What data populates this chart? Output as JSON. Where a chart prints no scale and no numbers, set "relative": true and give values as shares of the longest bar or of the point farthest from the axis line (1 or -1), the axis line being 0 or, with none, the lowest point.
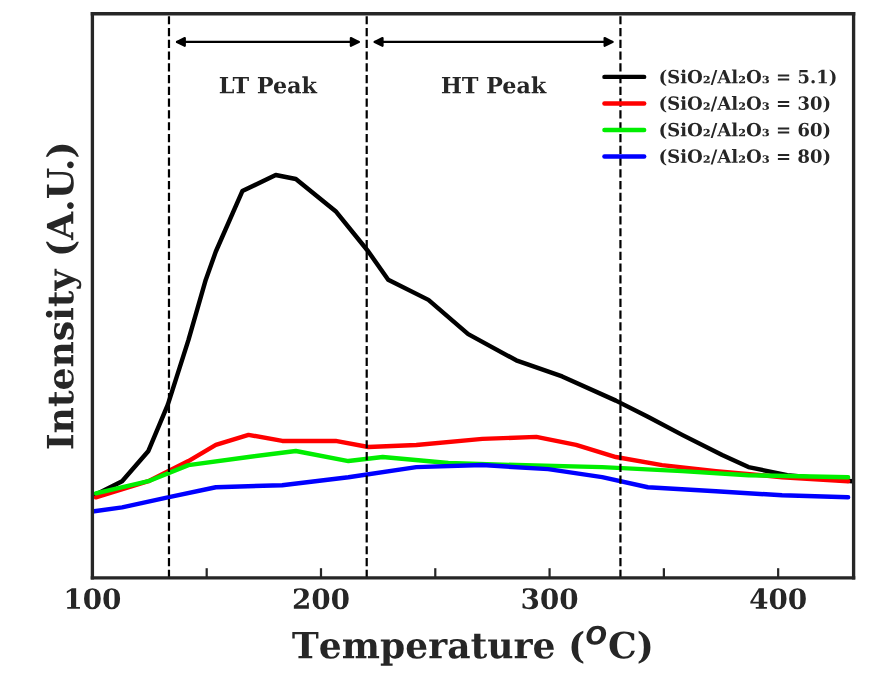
{
  "chart_data": {
    "type": "line",
    "relative": true,
    "xlabel": "Temperature ($^{O}$C)",
    "ylabel": "Intensity (A.U.)",
    "xlim": [
      100,
      433
    ],
    "xticks": [
      100,
      {
        "value": 150,
        "label": null
      },
      200,
      {
        "value": 250,
        "label": null
      },
      300,
      {
        "value": 350,
        "label": null
      },
      400
    ],
    "legend": "top right",
    "grid": false,
    "line_style": "solid",
    "marker": "none",
    "ref_lines": [
      {
        "axis": "x",
        "value": 133.5,
        "color": "#000000",
        "line_style": "dashed"
      },
      {
        "axis": "x",
        "value": 220,
        "color": "#000000",
        "line_style": "dashed"
      },
      {
        "axis": "x",
        "value": 331,
        "color": "#000000",
        "line_style": "dashed"
      }
    ],
    "annotations": [
      "LT Peak",
      "HT Peak"
    ],
    "series": [
      {
        "name": "(SiO₂/Al₂O₃ = 5.1)",
        "color": "#000000",
        "x": [
          101.5,
          113,
          124.5,
          133,
          142,
          149.6,
          154,
          165.6,
          180.2,
          189,
          206.4,
          220.7,
          229.4,
          247,
          264.4,
          285.4,
          305.5,
          329,
          343,
          358,
          375.5,
          387,
          404,
          432.4
        ],
        "values": [
          0.207,
          0.24,
          0.315,
          0.43,
          0.59,
          0.74,
          0.81,
          0.96,
          1.0,
          0.99,
          0.91,
          0.81,
          0.74,
          0.69,
          0.605,
          0.54,
          0.5,
          0.44,
          0.4,
          0.355,
          0.305,
          0.275,
          0.255,
          0.24
        ]
      },
      {
        "name": "(SiO₂/Al₂O₃ = 30)",
        "color": "#ff0000",
        "x": [
          101.5,
          124.5,
          142,
          154,
          168.3,
          183.1,
          206.4,
          220.7,
          241.7,
          270.6,
          294.2,
          311.6,
          329,
          349.2,
          372.8,
          401.7,
          430.6
        ],
        "values": [
          0.2,
          0.24,
          0.29,
          0.33,
          0.355,
          0.34,
          0.34,
          0.325,
          0.33,
          0.345,
          0.35,
          0.33,
          0.3,
          0.28,
          0.265,
          0.25,
          0.24
        ]
      },
      {
        "name": "(SiO₂/Al₂O₃ = 60)",
        "color": "#00ee00",
        "x": [
          101.5,
          124.5,
          142,
          168.3,
          189,
          212,
          227,
          255.7,
          285.4,
          323,
          358,
          387,
          430.6
        ],
        "values": [
          0.21,
          0.24,
          0.28,
          0.3,
          0.315,
          0.29,
          0.3,
          0.285,
          0.28,
          0.275,
          0.265,
          0.255,
          0.25
        ]
      },
      {
        "name": "(SiO₂/Al₂O₃ = 80)",
        "color": "#0000ff",
        "x": [
          100,
          113,
          133,
          154,
          183,
          212,
          241.7,
          270.6,
          299.4,
          323,
          343,
          372.8,
          401.7,
          430.6
        ],
        "values": [
          0.165,
          0.175,
          0.2,
          0.225,
          0.23,
          0.25,
          0.275,
          0.28,
          0.27,
          0.25,
          0.225,
          0.215,
          0.205,
          0.2
        ]
      }
    ]
  }
}
